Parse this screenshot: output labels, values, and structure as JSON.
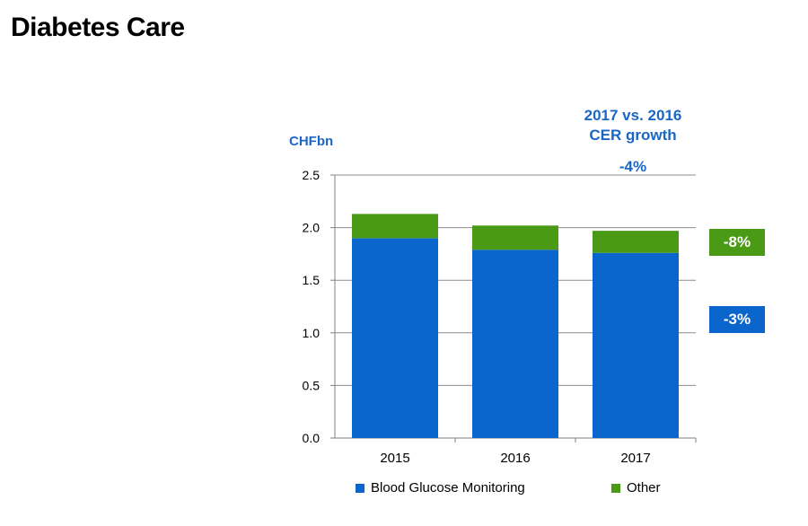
{
  "page": {
    "title": "Diabetes Care"
  },
  "colors": {
    "blue": "#0a66cc",
    "green": "#4a9a16",
    "text_blue": "#1a66c4",
    "axis": "#808080"
  },
  "growth": {
    "header_line1": "2017 vs. 2016",
    "header_line2": "CER growth",
    "total": "-4%",
    "other": "-8%",
    "bgm": "-3%"
  },
  "chart_data": {
    "type": "bar",
    "stacked": true,
    "categories": [
      "2015",
      "2016",
      "2017"
    ],
    "series": [
      {
        "name": "Blood Glucose Monitoring",
        "values": [
          1.9,
          1.79,
          1.76
        ]
      },
      {
        "name": "Other",
        "values": [
          0.23,
          0.23,
          0.21
        ]
      }
    ],
    "ylabel": "CHFbn",
    "ylim": [
      0,
      2.5
    ],
    "yticks": [
      "0.0",
      "0.5",
      "1.0",
      "1.5",
      "2.0",
      "2.5"
    ],
    "grid": true,
    "legend": "bottom"
  }
}
